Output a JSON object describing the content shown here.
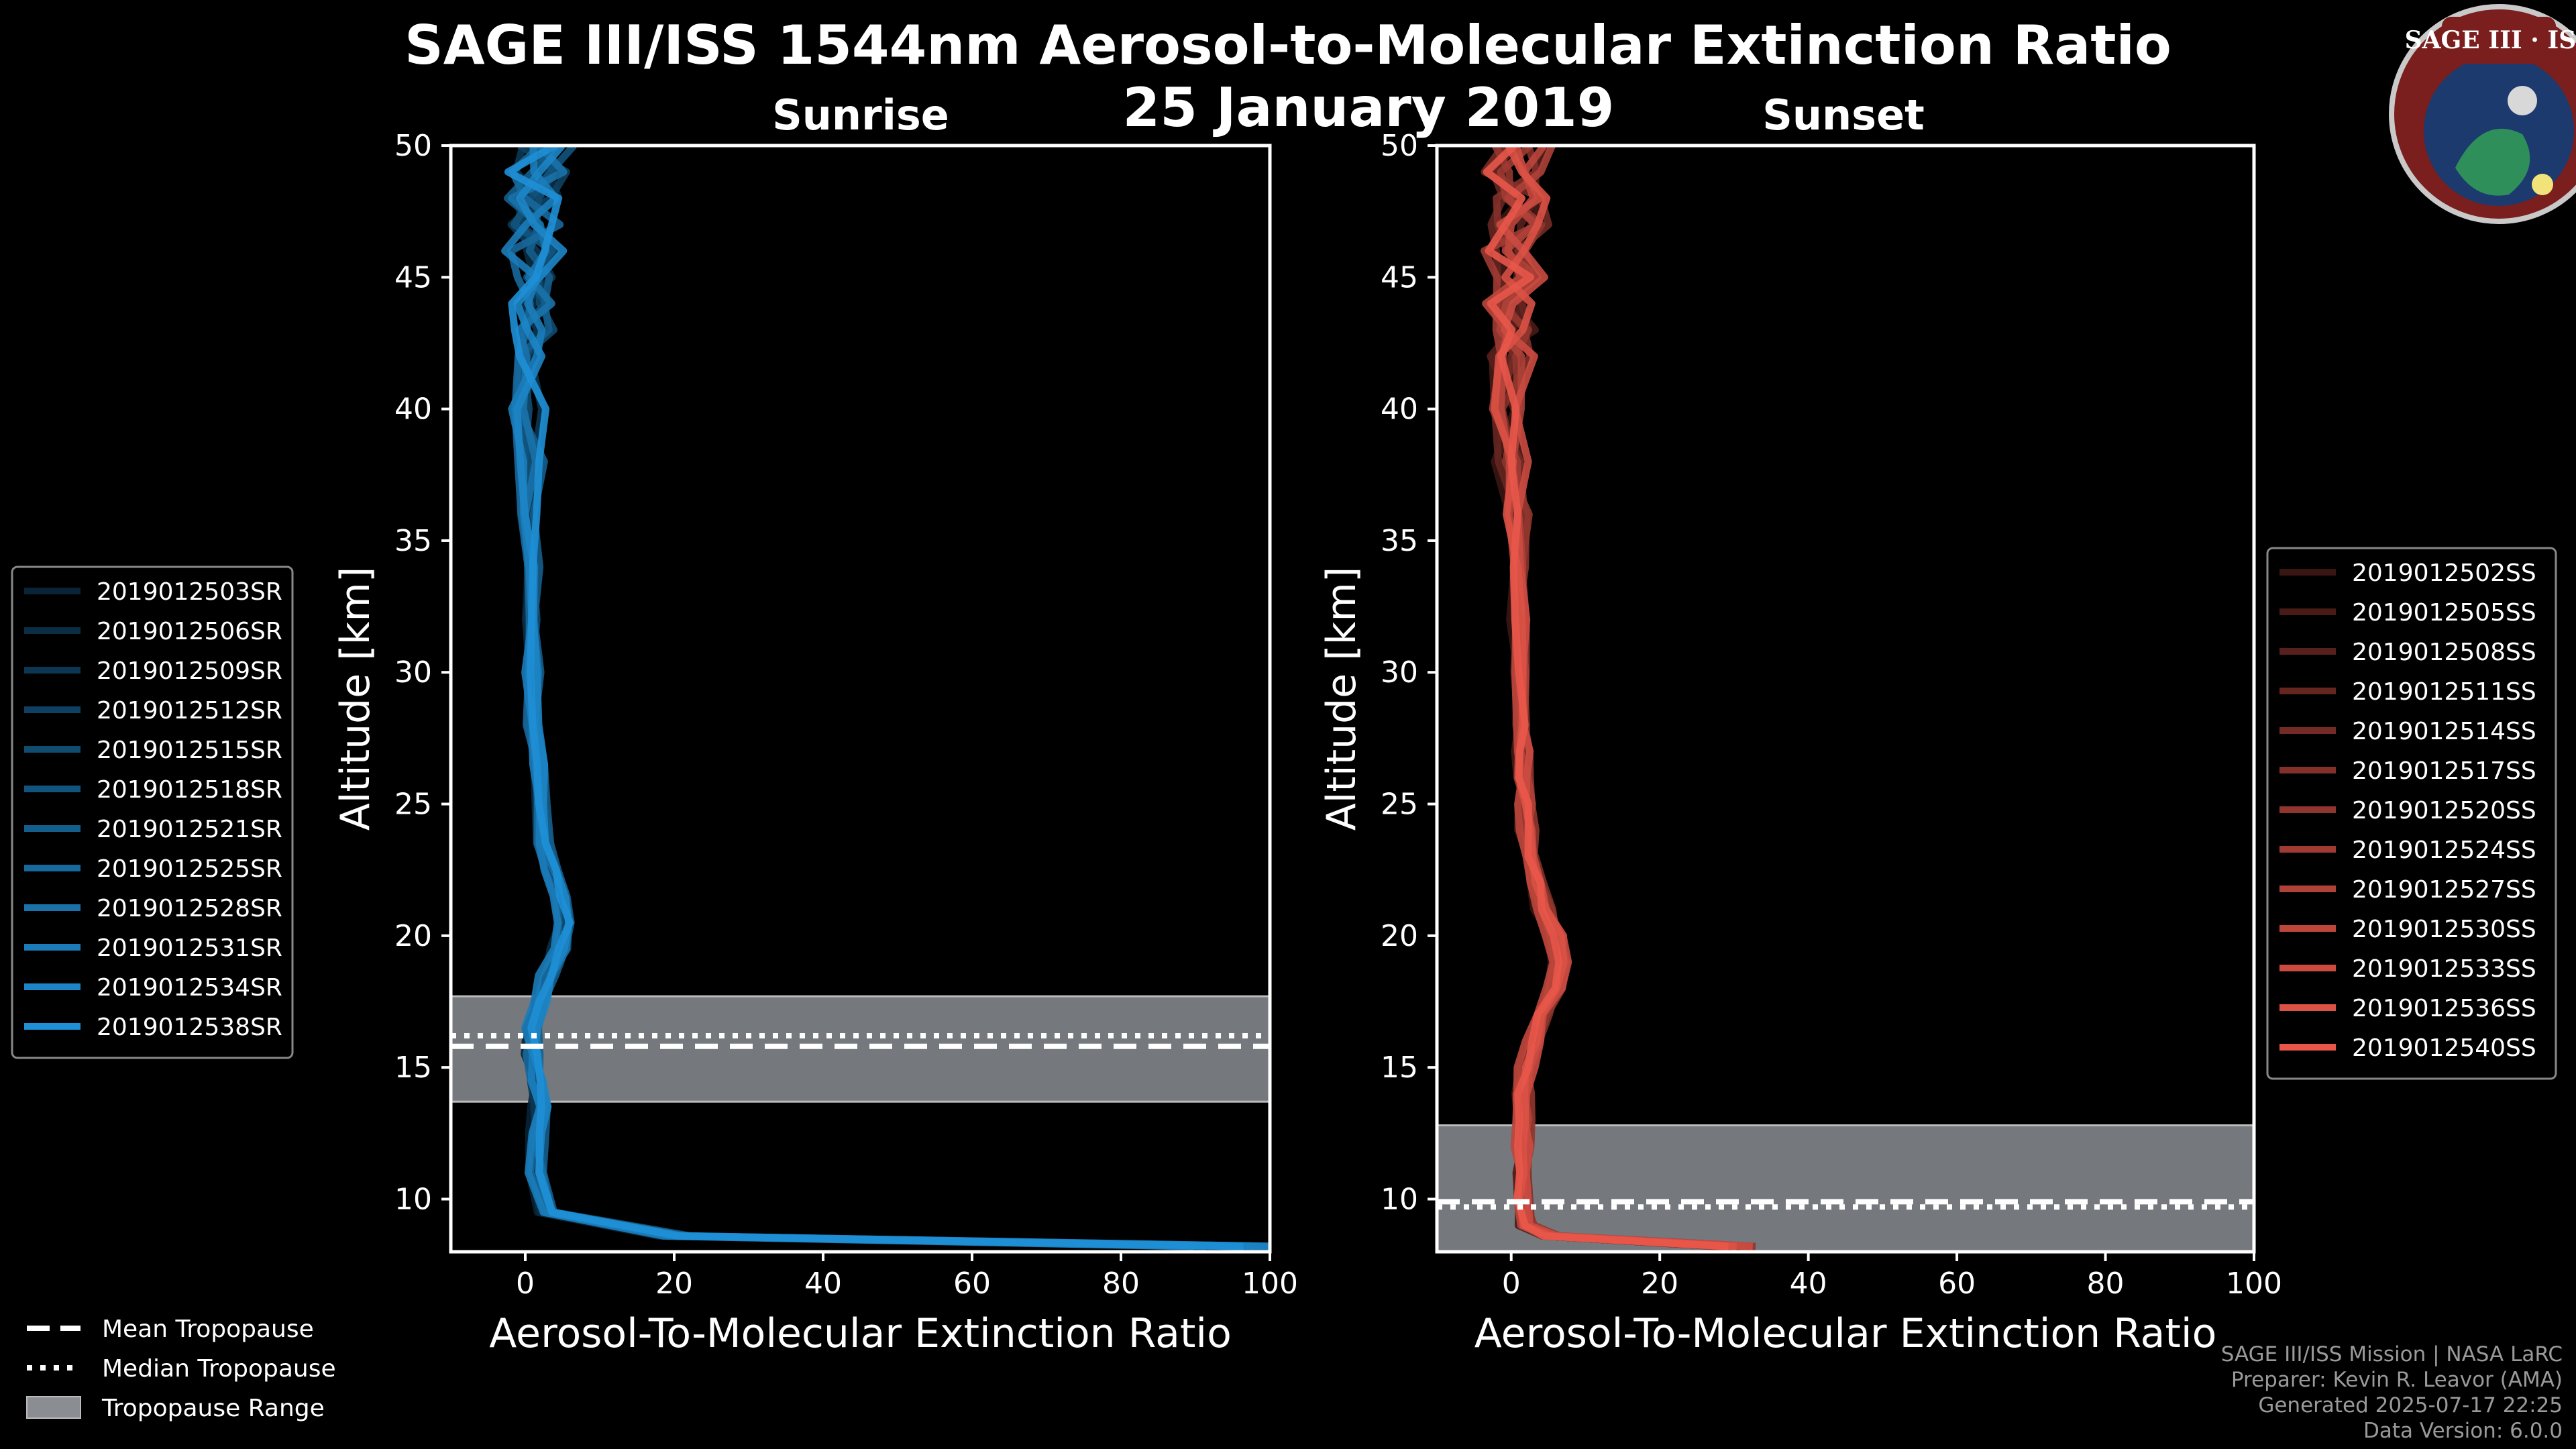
{
  "title": "SAGE III/ISS 1544nm Aerosol-to-Molecular Extinction Ratio",
  "date": "25 January 2019",
  "logo": {
    "text": "SAGE III · ISS"
  },
  "footer": {
    "line1": "SAGE III/ISS Mission | NASA LaRC",
    "line2": "Preparer: Kevin R. Leavor (AMA)",
    "line3": "Generated 2025-07-17 22:25",
    "line4": "Data Version: 6.0.0"
  },
  "tropopause_legend": {
    "mean": "Mean Tropopause",
    "median": "Median Tropopause",
    "range": "Tropopause Range"
  },
  "colors": {
    "sunrise": "#1f8fd6",
    "sunset": "#e8564a",
    "tropopause_band": "#8a8d92"
  },
  "chart_data": [
    {
      "type": "line",
      "panel": "Sunrise",
      "title": "Sunrise",
      "xlabel": "Aerosol-To-Molecular Extinction Ratio",
      "ylabel": "Altitude [km]",
      "xlim": [
        -10,
        100
      ],
      "ylim": [
        8,
        50
      ],
      "xticks": [
        0,
        20,
        40,
        60,
        80,
        100
      ],
      "yticks": [
        10,
        15,
        20,
        25,
        30,
        35,
        40,
        45,
        50
      ],
      "legend_position": "left",
      "tropopause": {
        "mean": 15.8,
        "median": 16.2,
        "range": [
          13.7,
          17.7
        ]
      },
      "profile_altitudes": [
        8.2,
        8.6,
        9.5,
        11,
        12.5,
        13.5,
        14.5,
        15.5,
        16.5,
        17.5,
        18.5,
        19.5,
        20.5,
        21.5,
        22.5,
        23.5,
        25,
        26.5,
        28,
        30,
        32,
        34,
        36,
        38,
        40,
        42,
        43,
        44,
        45,
        46,
        47,
        48,
        49,
        50
      ],
      "base_profile": [
        95,
        20,
        3,
        1.5,
        1.5,
        2.0,
        1.5,
        1.0,
        1.0,
        2.0,
        3.0,
        4.5,
        5.5,
        5.0,
        3.5,
        2.5,
        2.0,
        1.5,
        1.0,
        1.0,
        1.0,
        0.8,
        0.5,
        0.5,
        0.5,
        0.8,
        1.2,
        1.0,
        1.5,
        1.0,
        1.5,
        1.0,
        1.5,
        2.0
      ],
      "series": [
        {
          "name": "2019012503SR",
          "offset": -0.6
        },
        {
          "name": "2019012506SR",
          "offset": -0.4
        },
        {
          "name": "2019012509SR",
          "offset": -0.2
        },
        {
          "name": "2019012512SR",
          "offset": 0.0
        },
        {
          "name": "2019012515SR",
          "offset": 0.2
        },
        {
          "name": "2019012518SR",
          "offset": 0.4
        },
        {
          "name": "2019012521SR",
          "offset": 0.6
        },
        {
          "name": "2019012525SR",
          "offset": -0.3
        },
        {
          "name": "2019012528SR",
          "offset": 0.3
        },
        {
          "name": "2019012531SR",
          "offset": -0.5
        },
        {
          "name": "2019012534SR",
          "offset": 0.5
        },
        {
          "name": "2019012538SR",
          "offset": 0.1
        }
      ]
    },
    {
      "type": "line",
      "panel": "Sunset",
      "title": "Sunset",
      "xlabel": "Aerosol-To-Molecular Extinction Ratio",
      "ylabel": "Altitude [km]",
      "xlim": [
        -10,
        100
      ],
      "ylim": [
        8,
        50
      ],
      "xticks": [
        0,
        20,
        40,
        60,
        80,
        100
      ],
      "yticks": [
        10,
        15,
        20,
        25,
        30,
        35,
        40,
        45,
        50
      ],
      "legend_position": "right",
      "tropopause": {
        "mean": 9.9,
        "median": 9.7,
        "range": [
          8.0,
          12.8
        ]
      },
      "profile_altitudes": [
        8.2,
        8.6,
        9.0,
        10,
        11,
        12,
        13,
        14,
        15,
        16,
        17,
        18,
        19,
        20,
        21,
        22,
        23,
        24,
        25,
        26,
        27,
        28,
        30,
        32,
        34,
        36,
        38,
        40,
        42,
        43,
        44,
        45,
        46,
        47,
        48,
        49,
        50
      ],
      "base_profile": [
        30,
        5,
        2,
        1.5,
        1.5,
        1.5,
        1.5,
        1.5,
        2.0,
        3.0,
        4.0,
        5.5,
        6.5,
        6.0,
        4.5,
        3.5,
        2.5,
        2.0,
        2.0,
        1.5,
        1.5,
        1.5,
        1.0,
        1.0,
        1.0,
        0.5,
        0.0,
        -1.0,
        0.0,
        1.0,
        0.0,
        1.0,
        0.0,
        1.0,
        1.0,
        0.0,
        1.0
      ],
      "series": [
        {
          "name": "2019012502SS",
          "offset": -0.6
        },
        {
          "name": "2019012505SS",
          "offset": -0.4
        },
        {
          "name": "2019012508SS",
          "offset": -0.2
        },
        {
          "name": "2019012511SS",
          "offset": 0.0
        },
        {
          "name": "2019012514SS",
          "offset": 0.2
        },
        {
          "name": "2019012517SS",
          "offset": 0.4
        },
        {
          "name": "2019012520SS",
          "offset": 0.6
        },
        {
          "name": "2019012524SS",
          "offset": -0.3
        },
        {
          "name": "2019012527SS",
          "offset": 0.3
        },
        {
          "name": "2019012530SS",
          "offset": -0.5
        },
        {
          "name": "2019012533SS",
          "offset": 0.5
        },
        {
          "name": "2019012536SS",
          "offset": 0.1
        },
        {
          "name": "2019012540SS",
          "offset": -0.1
        }
      ]
    }
  ]
}
